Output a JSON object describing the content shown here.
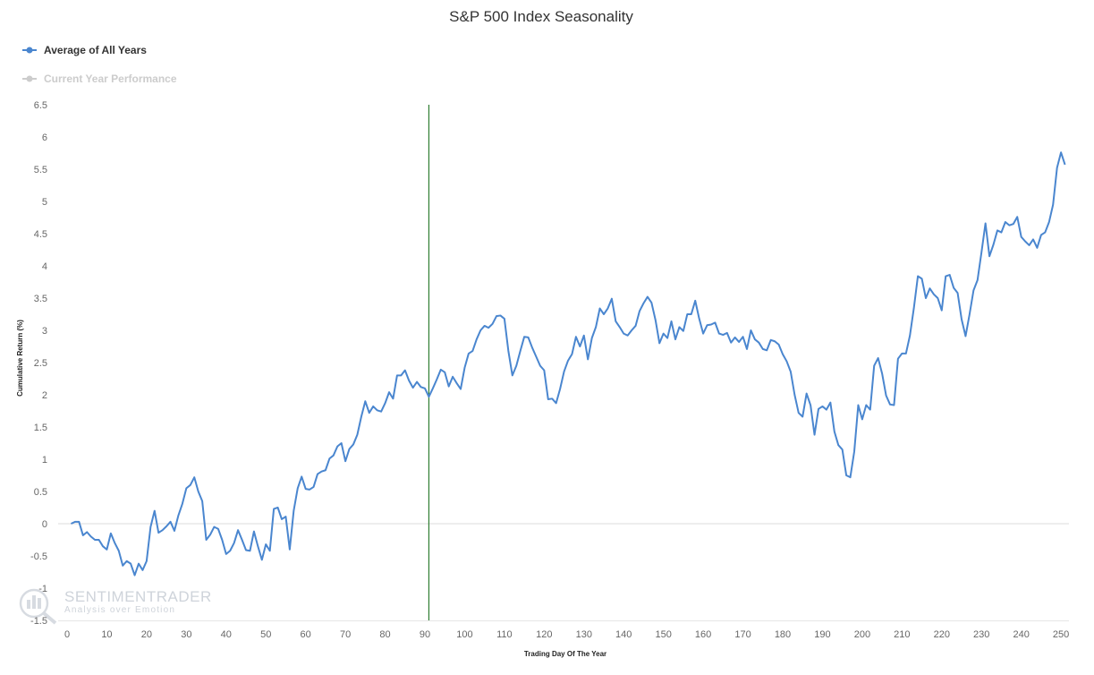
{
  "chart_data": {
    "type": "line",
    "title": "S&P 500 Index Seasonality",
    "xlabel": "Trading Day Of The Year",
    "ylabel": "Cumulative Return (%)",
    "xlim": [
      0,
      252
    ],
    "ylim": [
      -1.5,
      6.5
    ],
    "x_ticks": [
      "0",
      "10",
      "20",
      "30",
      "40",
      "50",
      "60",
      "70",
      "80",
      "90",
      "100",
      "110",
      "120",
      "130",
      "140",
      "150",
      "160",
      "170",
      "180",
      "190",
      "200",
      "210",
      "220",
      "230",
      "240",
      "250"
    ],
    "y_ticks": [
      "6.5",
      "6",
      "5.5",
      "5",
      "4.5",
      "4",
      "3.5",
      "3",
      "2.5",
      "2",
      "1.5",
      "1",
      "0.5",
      "0",
      "-0.5",
      "-1",
      "-1.5"
    ],
    "grid": false,
    "legend_position": "top-left",
    "marker_line_x": 91,
    "colors": {
      "series": "#4a86cf",
      "hidden_series": "#cccccc",
      "marker_line": "#2e7d32",
      "zero_line": "#dddddd"
    },
    "series": [
      {
        "name": "Average of All Years",
        "visible": true,
        "x": [
          1,
          2,
          3,
          4,
          5,
          6,
          7,
          8,
          9,
          10,
          11,
          12,
          13,
          14,
          15,
          16,
          17,
          18,
          19,
          20,
          21,
          22,
          23,
          24,
          25,
          26,
          27,
          28,
          29,
          30,
          31,
          32,
          33,
          34,
          35,
          36,
          37,
          38,
          39,
          40,
          41,
          42,
          43,
          44,
          45,
          46,
          47,
          48,
          49,
          50,
          51,
          52,
          53,
          54,
          55,
          56,
          57,
          58,
          59,
          60,
          61,
          62,
          63,
          64,
          65,
          66,
          67,
          68,
          69,
          70,
          71,
          72,
          73,
          74,
          75,
          76,
          77,
          78,
          79,
          80,
          81,
          82,
          83,
          84,
          85,
          86,
          87,
          88,
          89,
          90,
          91,
          92,
          93,
          94,
          95,
          96,
          97,
          98,
          99,
          100,
          101,
          102,
          103,
          104,
          105,
          106,
          107,
          108,
          109,
          110,
          111,
          112,
          113,
          114,
          115,
          116,
          117,
          118,
          119,
          120,
          121,
          122,
          123,
          124,
          125,
          126,
          127,
          128,
          129,
          130,
          131,
          132,
          133,
          134,
          135,
          136,
          137,
          138,
          139,
          140,
          141,
          142,
          143,
          144,
          145,
          146,
          147,
          148,
          149,
          150,
          151,
          152,
          153,
          154,
          155,
          156,
          157,
          158,
          159,
          160,
          161,
          162,
          163,
          164,
          165,
          166,
          167,
          168,
          169,
          170,
          171,
          172,
          173,
          174,
          175,
          176,
          177,
          178,
          179,
          180,
          181,
          182,
          183,
          184,
          185,
          186,
          187,
          188,
          189,
          190,
          191,
          192,
          193,
          194,
          195,
          196,
          197,
          198,
          199,
          200,
          201,
          202,
          203,
          204,
          205,
          206,
          207,
          208,
          209,
          210,
          211,
          212,
          213,
          214,
          215,
          216,
          217,
          218,
          219,
          220,
          221,
          222,
          223,
          224,
          225,
          226,
          227,
          228,
          229,
          230,
          231,
          232,
          233,
          234,
          235,
          236,
          237,
          238,
          239,
          240,
          241,
          242,
          243,
          244,
          245,
          246,
          247,
          248,
          249,
          250,
          251
        ],
        "y": [
          0.0,
          0.03,
          0.03,
          -0.18,
          -0.13,
          -0.2,
          -0.25,
          -0.25,
          -0.35,
          -0.4,
          -0.15,
          -0.3,
          -0.42,
          -0.65,
          -0.58,
          -0.62,
          -0.8,
          -0.62,
          -0.72,
          -0.58,
          -0.05,
          0.2,
          -0.14,
          -0.1,
          -0.04,
          0.03,
          -0.11,
          0.13,
          0.31,
          0.55,
          0.6,
          0.72,
          0.5,
          0.35,
          -0.25,
          -0.17,
          -0.05,
          -0.08,
          -0.25,
          -0.47,
          -0.42,
          -0.3,
          -0.1,
          -0.25,
          -0.41,
          -0.42,
          -0.12,
          -0.35,
          -0.56,
          -0.32,
          -0.42,
          0.23,
          0.25,
          0.07,
          0.11,
          -0.4,
          0.2,
          0.55,
          0.73,
          0.54,
          0.53,
          0.57,
          0.77,
          0.81,
          0.83,
          1.01,
          1.06,
          1.2,
          1.25,
          0.97,
          1.16,
          1.23,
          1.38,
          1.66,
          1.9,
          1.72,
          1.82,
          1.76,
          1.74,
          1.87,
          2.04,
          1.94,
          2.3,
          2.3,
          2.38,
          2.22,
          2.11,
          2.2,
          2.12,
          2.1,
          1.97,
          2.1,
          2.24,
          2.39,
          2.35,
          2.13,
          2.28,
          2.18,
          2.09,
          2.42,
          2.64,
          2.68,
          2.86,
          3.0,
          3.07,
          3.04,
          3.1,
          3.22,
          3.23,
          3.18,
          2.68,
          2.3,
          2.45,
          2.68,
          2.9,
          2.89,
          2.73,
          2.59,
          2.45,
          2.38,
          1.93,
          1.94,
          1.87,
          2.09,
          2.36,
          2.53,
          2.63,
          2.9,
          2.75,
          2.92,
          2.55,
          2.88,
          3.05,
          3.34,
          3.25,
          3.34,
          3.49,
          3.14,
          3.05,
          2.95,
          2.92,
          3.0,
          3.07,
          3.3,
          3.42,
          3.52,
          3.43,
          3.16,
          2.8,
          2.95,
          2.88,
          3.14,
          2.86,
          3.05,
          2.99,
          3.25,
          3.25,
          3.46,
          3.18,
          2.95,
          3.08,
          3.09,
          3.12,
          2.95,
          2.93,
          2.96,
          2.81,
          2.89,
          2.82,
          2.9,
          2.71,
          3.0,
          2.86,
          2.81,
          2.71,
          2.69,
          2.85,
          2.83,
          2.78,
          2.63,
          2.52,
          2.36,
          2.0,
          1.72,
          1.66,
          2.02,
          1.84,
          1.38,
          1.78,
          1.82,
          1.77,
          1.88,
          1.43,
          1.22,
          1.15,
          0.75,
          0.72,
          1.12,
          1.84,
          1.62,
          1.84,
          1.77,
          2.45,
          2.57,
          2.33,
          1.99,
          1.85,
          1.84,
          2.56,
          2.64,
          2.64,
          2.92,
          3.35,
          3.84,
          3.8,
          3.5,
          3.65,
          3.56,
          3.5,
          3.31,
          3.84,
          3.86,
          3.66,
          3.58,
          3.17,
          2.91,
          3.25,
          3.62,
          3.78,
          4.21,
          4.66,
          4.15,
          4.33,
          4.55,
          4.52,
          4.68,
          4.63,
          4.65,
          4.76,
          4.45,
          4.38,
          4.32,
          4.41,
          4.28,
          4.48,
          4.52,
          4.68,
          4.95,
          5.52,
          5.76,
          5.57
        ]
      },
      {
        "name": "Current Year Performance",
        "visible": false,
        "x": [],
        "y": []
      }
    ],
    "watermark": {
      "brand": "SENTIMENTRADER",
      "tagline": "Analysis over Emotion"
    }
  }
}
